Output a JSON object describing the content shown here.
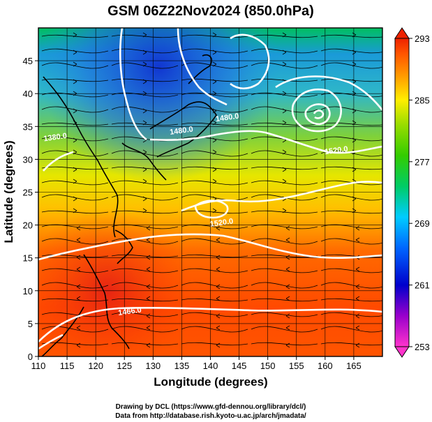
{
  "title": "GSM 06Z22Nov2024 (850.0hPa)",
  "xlabel": "Longitude (degrees)",
  "ylabel": "Latitude  (degrees)",
  "credits": [
    "Drawing by DCL (https://www.gfd-dennou.org/library/dcl/)",
    "Data from http://database.rish.kyoto-u.ac.jp/arch/jmadata/"
  ],
  "chart_data": {
    "type": "heatmap",
    "x_range": [
      110,
      170
    ],
    "y_range": [
      0,
      50
    ],
    "x_ticks": [
      110,
      115,
      120,
      125,
      130,
      135,
      140,
      145,
      150,
      155,
      160,
      165
    ],
    "y_ticks": [
      0,
      5,
      10,
      15,
      20,
      25,
      30,
      35,
      40,
      45
    ],
    "grid": true,
    "colorbar": {
      "range": [
        253,
        293
      ],
      "ticks": [
        253,
        261,
        269,
        277,
        285,
        293
      ],
      "colors": [
        "#ff33cc",
        "#9900cc",
        "#0000cc",
        "#0066ff",
        "#00ccff",
        "#00cc66",
        "#33cc00",
        "#99dd00",
        "#ffee00",
        "#ff9900",
        "#ff5500",
        "#ee2200"
      ]
    },
    "contours": [
      {
        "label": "1466.0",
        "lon": 126,
        "lat": 6.5
      },
      {
        "label": "1520.0",
        "lon": 142,
        "lat": 20
      },
      {
        "label": "1520.0",
        "lon": 162,
        "lat": 31
      },
      {
        "label": "1480.0",
        "lon": 135,
        "lat": 34
      },
      {
        "label": "1480.0",
        "lon": 143,
        "lat": 36
      },
      {
        "label": "1380.0",
        "lon": 113,
        "lat": 33
      }
    ]
  }
}
